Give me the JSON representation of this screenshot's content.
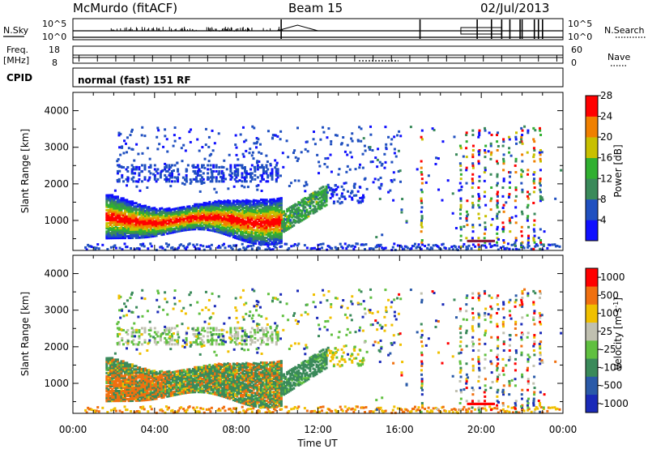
{
  "header": {
    "station": "McMurdo (fitACF)",
    "beam": "Beam 15",
    "date": "02/Jul/2013"
  },
  "top_panels": {
    "nsky_label": "N.Sky",
    "nsearch_label": "N.Search",
    "nsky_ticks": [
      "10^5",
      "10^0"
    ],
    "nsearch_ticks": [
      "10^5",
      "10^0"
    ],
    "freq_label": "Freq.",
    "freq_unit": "[MHz]",
    "freq_ticks": [
      "18",
      "8"
    ],
    "nave_label": "Nave",
    "nave_ticks": [
      "60",
      "0"
    ],
    "cpid_label": "CPID",
    "cpid_value": "normal (fast) 151 RF"
  },
  "chart_data": [
    {
      "type": "heatmap",
      "ylabel": "Slant Range [km]",
      "xlabel": "",
      "x_range_hours": [
        0,
        24
      ],
      "ylim": [
        180,
        4500
      ],
      "y_ticks": [
        "1000",
        "2000",
        "3000",
        "4000"
      ],
      "colorbar": {
        "label": "Power [dB]",
        "ticks": [
          "4",
          "8",
          "12",
          "16",
          "20",
          "24",
          "28"
        ],
        "range": [
          0,
          30
        ],
        "colors": [
          "#1010ff",
          "#2050c0",
          "#3a8a5a",
          "#30b030",
          "#c8c000",
          "#f08000",
          "#ff0000"
        ]
      }
    },
    {
      "type": "heatmap",
      "ylabel": "Slant Range [km]",
      "xlabel": "Time UT",
      "x_ticks": [
        "00:00",
        "04:00",
        "08:00",
        "12:00",
        "16:00",
        "20:00",
        "00:00"
      ],
      "ylim": [
        180,
        4500
      ],
      "y_ticks": [
        "1000",
        "2000",
        "3000",
        "4000"
      ],
      "colorbar": {
        "label": "Velocity [m s^-1]",
        "ticks": [
          "1000",
          "500",
          "100",
          "25",
          "-25",
          "-100",
          "-500",
          "-1000"
        ],
        "colors": [
          "#1a2ab8",
          "#2a5aa8",
          "#3a8a5a",
          "#60c040",
          "#c0c0b0",
          "#f0c000",
          "#f07010",
          "#ff0000"
        ]
      }
    }
  ]
}
